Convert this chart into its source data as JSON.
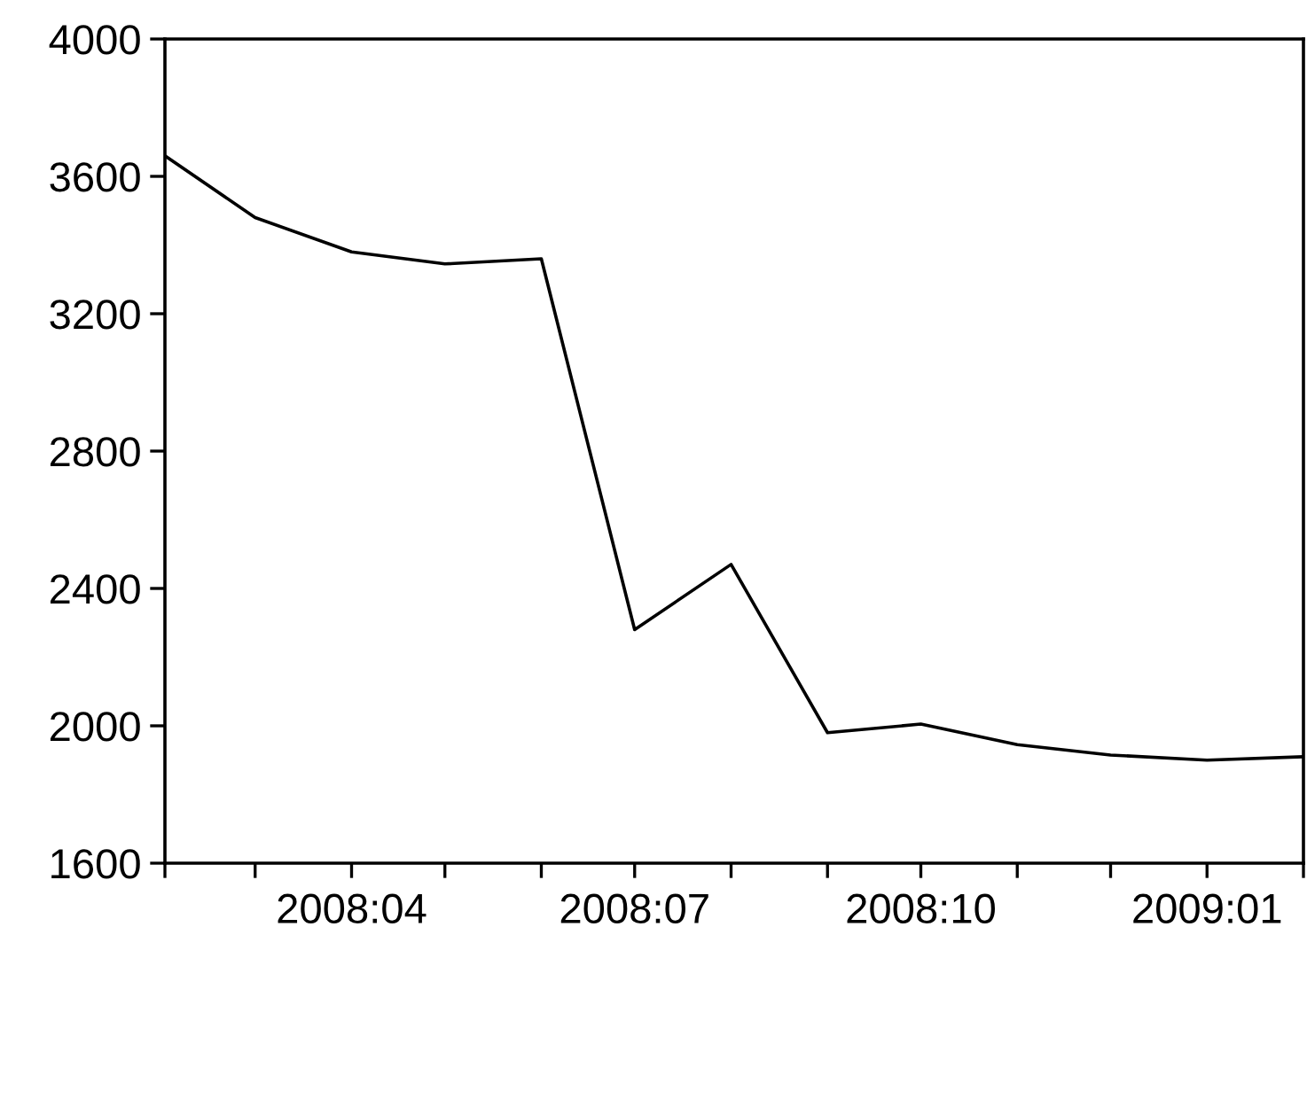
{
  "chart_data": {
    "type": "line",
    "x": [
      "2008-02",
      "2008-03",
      "2008-04",
      "2008-05",
      "2008-06",
      "2008-07",
      "2008-08",
      "2008-09",
      "2008-10",
      "2008-11",
      "2008-12",
      "2009-01",
      "2009-02"
    ],
    "series": [
      {
        "color": "#000000",
        "values": [
          3660,
          3480,
          3380,
          3345,
          3360,
          2280,
          2470,
          1980,
          2005,
          1945,
          1915,
          1900,
          1910
        ]
      }
    ],
    "xlim": [
      "2008-02",
      "2009-02"
    ],
    "xticks": [
      {
        "value": "2008-02",
        "label": null
      },
      {
        "value": "2008-03",
        "label": null
      },
      {
        "value": "2008-04",
        "label": "2008:04"
      },
      {
        "value": "2008-05",
        "label": null
      },
      {
        "value": "2008-06",
        "label": null
      },
      {
        "value": "2008-07",
        "label": "2008:07"
      },
      {
        "value": "2008-08",
        "label": null
      },
      {
        "value": "2008-09",
        "label": null
      },
      {
        "value": "2008-10",
        "label": "2008:10"
      },
      {
        "value": "2008-11",
        "label": null
      },
      {
        "value": "2008-12",
        "label": null
      },
      {
        "value": "2009-01",
        "label": "2009:01"
      },
      {
        "value": "2009-02",
        "label": null
      }
    ],
    "ylim": [
      1600,
      4000
    ],
    "yticks": [
      1600,
      2000,
      2400,
      2800,
      3200,
      3600,
      4000
    ],
    "grid": false,
    "marker": "none",
    "line_style": "solid"
  }
}
